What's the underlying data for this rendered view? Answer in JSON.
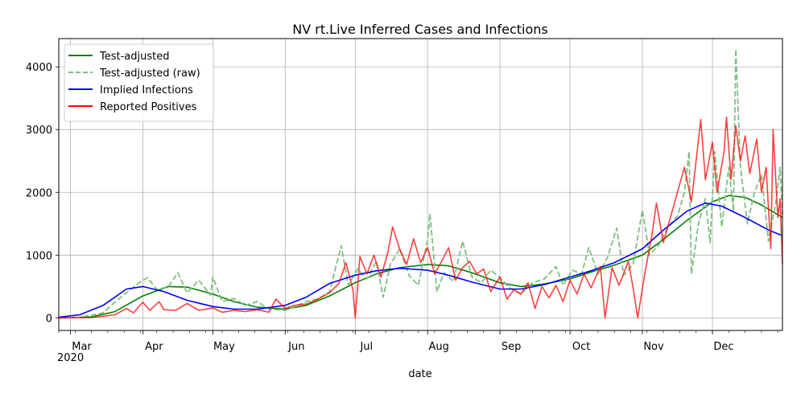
{
  "chart_data": {
    "type": "line",
    "title": "NV rt.Live Inferred Cases and Infections",
    "xlabel": "date",
    "ylabel": "",
    "year_label": "2020",
    "xlim": [
      "2020-02-25",
      "2020-12-31"
    ],
    "ylim": [
      -200,
      4450
    ],
    "yticks": [
      0,
      1000,
      2000,
      3000,
      4000
    ],
    "month_ticks": [
      {
        "label": "Mar",
        "date": "2020-03-01"
      },
      {
        "label": "Apr",
        "date": "2020-04-01"
      },
      {
        "label": "May",
        "date": "2020-05-01"
      },
      {
        "label": "Jun",
        "date": "2020-06-01"
      },
      {
        "label": "Jul",
        "date": "2020-07-01"
      },
      {
        "label": "Aug",
        "date": "2020-08-01"
      },
      {
        "label": "Sep",
        "date": "2020-09-01"
      },
      {
        "label": "Oct",
        "date": "2020-10-01"
      },
      {
        "label": "Nov",
        "date": "2020-11-01"
      },
      {
        "label": "Dec",
        "date": "2020-12-01"
      }
    ],
    "grid": true,
    "legend_position": "top-left",
    "series": [
      {
        "name": "Test-adjusted",
        "color": "#008000",
        "style": "solid",
        "points": [
          [
            "2020-02-25",
            0
          ],
          [
            "2020-03-10",
            15
          ],
          [
            "2020-03-20",
            100
          ],
          [
            "2020-04-01",
            350
          ],
          [
            "2020-04-12",
            500
          ],
          [
            "2020-04-20",
            490
          ],
          [
            "2020-05-01",
            380
          ],
          [
            "2020-05-10",
            260
          ],
          [
            "2020-05-20",
            170
          ],
          [
            "2020-06-01",
            140
          ],
          [
            "2020-06-10",
            200
          ],
          [
            "2020-06-20",
            350
          ],
          [
            "2020-07-01",
            560
          ],
          [
            "2020-07-10",
            700
          ],
          [
            "2020-07-20",
            800
          ],
          [
            "2020-08-01",
            850
          ],
          [
            "2020-08-10",
            830
          ],
          [
            "2020-08-20",
            720
          ],
          [
            "2020-09-01",
            560
          ],
          [
            "2020-09-10",
            500
          ],
          [
            "2020-09-20",
            540
          ],
          [
            "2020-10-01",
            620
          ],
          [
            "2020-10-10",
            730
          ],
          [
            "2020-10-20",
            840
          ],
          [
            "2020-11-01",
            1000
          ],
          [
            "2020-11-10",
            1250
          ],
          [
            "2020-11-20",
            1550
          ],
          [
            "2020-12-01",
            1850
          ],
          [
            "2020-12-08",
            1950
          ],
          [
            "2020-12-15",
            1920
          ],
          [
            "2020-12-22",
            1800
          ],
          [
            "2020-12-31",
            1600
          ]
        ]
      },
      {
        "name": "Test-adjusted (raw)",
        "color": "#7fbf7f",
        "style": "dashed",
        "points": [
          [
            "2020-02-25",
            0
          ],
          [
            "2020-03-05",
            10
          ],
          [
            "2020-03-15",
            80
          ],
          [
            "2020-03-20",
            250
          ],
          [
            "2020-03-25",
            400
          ],
          [
            "2020-03-30",
            550
          ],
          [
            "2020-04-03",
            640
          ],
          [
            "2020-04-07",
            450
          ],
          [
            "2020-04-12",
            500
          ],
          [
            "2020-04-16",
            720
          ],
          [
            "2020-04-20",
            400
          ],
          [
            "2020-04-25",
            600
          ],
          [
            "2020-04-30",
            360
          ],
          [
            "2020-05-01",
            650
          ],
          [
            "2020-05-05",
            260
          ],
          [
            "2020-05-10",
            310
          ],
          [
            "2020-05-15",
            200
          ],
          [
            "2020-05-20",
            260
          ],
          [
            "2020-05-25",
            140
          ],
          [
            "2020-06-01",
            120
          ],
          [
            "2020-06-05",
            180
          ],
          [
            "2020-06-10",
            260
          ],
          [
            "2020-06-15",
            300
          ],
          [
            "2020-06-20",
            420
          ],
          [
            "2020-06-25",
            1150
          ],
          [
            "2020-06-28",
            520
          ],
          [
            "2020-07-02",
            780
          ],
          [
            "2020-07-06",
            620
          ],
          [
            "2020-07-10",
            900
          ],
          [
            "2020-07-13",
            330
          ],
          [
            "2020-07-16",
            850
          ],
          [
            "2020-07-20",
            1100
          ],
          [
            "2020-07-24",
            680
          ],
          [
            "2020-07-28",
            520
          ],
          [
            "2020-08-01",
            1250
          ],
          [
            "2020-08-02",
            1660
          ],
          [
            "2020-08-05",
            420
          ],
          [
            "2020-08-08",
            720
          ],
          [
            "2020-08-12",
            580
          ],
          [
            "2020-08-16",
            1220
          ],
          [
            "2020-08-20",
            650
          ],
          [
            "2020-08-24",
            560
          ],
          [
            "2020-08-28",
            760
          ],
          [
            "2020-09-01",
            640
          ],
          [
            "2020-09-05",
            480
          ],
          [
            "2020-09-10",
            380
          ],
          [
            "2020-09-15",
            560
          ],
          [
            "2020-09-20",
            620
          ],
          [
            "2020-09-25",
            820
          ],
          [
            "2020-09-28",
            520
          ],
          [
            "2020-10-02",
            760
          ],
          [
            "2020-10-06",
            700
          ],
          [
            "2020-10-09",
            1120
          ],
          [
            "2020-10-13",
            700
          ],
          [
            "2020-10-17",
            960
          ],
          [
            "2020-10-21",
            1430
          ],
          [
            "2020-10-24",
            680
          ],
          [
            "2020-10-28",
            850
          ],
          [
            "2020-11-01",
            1720
          ],
          [
            "2020-11-04",
            1000
          ],
          [
            "2020-11-08",
            1160
          ],
          [
            "2020-11-12",
            1450
          ],
          [
            "2020-11-16",
            1620
          ],
          [
            "2020-11-19",
            2000
          ],
          [
            "2020-11-21",
            2650
          ],
          [
            "2020-11-22",
            700
          ],
          [
            "2020-11-25",
            1500
          ],
          [
            "2020-11-28",
            1900
          ],
          [
            "2020-11-30",
            1200
          ],
          [
            "2020-12-02",
            2650
          ],
          [
            "2020-12-05",
            1450
          ],
          [
            "2020-12-08",
            2400
          ],
          [
            "2020-12-10",
            1700
          ],
          [
            "2020-12-11",
            4280
          ],
          [
            "2020-12-13",
            2400
          ],
          [
            "2020-12-16",
            1500
          ],
          [
            "2020-12-19",
            2000
          ],
          [
            "2020-12-22",
            2280
          ],
          [
            "2020-12-25",
            1220
          ],
          [
            "2020-12-28",
            1800
          ],
          [
            "2020-12-30",
            2400
          ],
          [
            "2020-12-31",
            1650
          ]
        ]
      },
      {
        "name": "Implied Infections",
        "color": "#0000ff",
        "style": "solid",
        "points": [
          [
            "2020-02-25",
            10
          ],
          [
            "2020-03-05",
            50
          ],
          [
            "2020-03-15",
            200
          ],
          [
            "2020-03-25",
            460
          ],
          [
            "2020-04-01",
            500
          ],
          [
            "2020-04-10",
            420
          ],
          [
            "2020-04-20",
            280
          ],
          [
            "2020-05-01",
            180
          ],
          [
            "2020-05-10",
            140
          ],
          [
            "2020-05-20",
            140
          ],
          [
            "2020-06-01",
            200
          ],
          [
            "2020-06-10",
            330
          ],
          [
            "2020-06-20",
            550
          ],
          [
            "2020-07-01",
            680
          ],
          [
            "2020-07-10",
            750
          ],
          [
            "2020-07-20",
            790
          ],
          [
            "2020-08-01",
            760
          ],
          [
            "2020-08-10",
            680
          ],
          [
            "2020-08-20",
            570
          ],
          [
            "2020-09-01",
            460
          ],
          [
            "2020-09-10",
            460
          ],
          [
            "2020-09-20",
            530
          ],
          [
            "2020-10-01",
            650
          ],
          [
            "2020-10-10",
            750
          ],
          [
            "2020-10-20",
            880
          ],
          [
            "2020-11-01",
            1100
          ],
          [
            "2020-11-10",
            1400
          ],
          [
            "2020-11-20",
            1700
          ],
          [
            "2020-11-28",
            1830
          ],
          [
            "2020-12-05",
            1780
          ],
          [
            "2020-12-15",
            1600
          ],
          [
            "2020-12-25",
            1400
          ],
          [
            "2020-12-31",
            1310
          ]
        ]
      },
      {
        "name": "Reported Positives",
        "color": "#ff0000",
        "style": "solid",
        "points": [
          [
            "2020-02-25",
            0
          ],
          [
            "2020-03-10",
            5
          ],
          [
            "2020-03-20",
            50
          ],
          [
            "2020-03-25",
            150
          ],
          [
            "2020-03-28",
            80
          ],
          [
            "2020-04-01",
            250
          ],
          [
            "2020-04-04",
            120
          ],
          [
            "2020-04-08",
            260
          ],
          [
            "2020-04-10",
            130
          ],
          [
            "2020-04-15",
            120
          ],
          [
            "2020-04-20",
            230
          ],
          [
            "2020-04-25",
            120
          ],
          [
            "2020-05-01",
            160
          ],
          [
            "2020-05-05",
            90
          ],
          [
            "2020-05-10",
            120
          ],
          [
            "2020-05-15",
            100
          ],
          [
            "2020-05-20",
            130
          ],
          [
            "2020-05-25",
            90
          ],
          [
            "2020-05-28",
            300
          ],
          [
            "2020-06-01",
            150
          ],
          [
            "2020-06-05",
            200
          ],
          [
            "2020-06-10",
            220
          ],
          [
            "2020-06-15",
            300
          ],
          [
            "2020-06-20",
            400
          ],
          [
            "2020-06-24",
            550
          ],
          [
            "2020-06-27",
            880
          ],
          [
            "2020-06-30",
            450
          ],
          [
            "2020-07-01",
            0
          ],
          [
            "2020-07-03",
            980
          ],
          [
            "2020-07-06",
            700
          ],
          [
            "2020-07-09",
            1000
          ],
          [
            "2020-07-12",
            650
          ],
          [
            "2020-07-15",
            1050
          ],
          [
            "2020-07-17",
            1450
          ],
          [
            "2020-07-20",
            1100
          ],
          [
            "2020-07-23",
            850
          ],
          [
            "2020-07-26",
            1260
          ],
          [
            "2020-07-29",
            880
          ],
          [
            "2020-08-01",
            1120
          ],
          [
            "2020-08-04",
            700
          ],
          [
            "2020-08-07",
            900
          ],
          [
            "2020-08-10",
            1120
          ],
          [
            "2020-08-13",
            600
          ],
          [
            "2020-08-16",
            800
          ],
          [
            "2020-08-19",
            900
          ],
          [
            "2020-08-22",
            700
          ],
          [
            "2020-08-25",
            780
          ],
          [
            "2020-08-28",
            420
          ],
          [
            "2020-09-01",
            650
          ],
          [
            "2020-09-04",
            300
          ],
          [
            "2020-09-07",
            450
          ],
          [
            "2020-09-10",
            380
          ],
          [
            "2020-09-13",
            560
          ],
          [
            "2020-09-16",
            150
          ],
          [
            "2020-09-19",
            500
          ],
          [
            "2020-09-22",
            320
          ],
          [
            "2020-09-25",
            520
          ],
          [
            "2020-09-28",
            260
          ],
          [
            "2020-10-01",
            600
          ],
          [
            "2020-10-04",
            380
          ],
          [
            "2020-10-07",
            700
          ],
          [
            "2020-10-10",
            480
          ],
          [
            "2020-10-14",
            820
          ],
          [
            "2020-10-16",
            0
          ],
          [
            "2020-10-19",
            800
          ],
          [
            "2020-10-22",
            520
          ],
          [
            "2020-10-26",
            900
          ],
          [
            "2020-10-28",
            480
          ],
          [
            "2020-10-30",
            0
          ],
          [
            "2020-11-02",
            700
          ],
          [
            "2020-11-05",
            1300
          ],
          [
            "2020-11-07",
            1830
          ],
          [
            "2020-11-10",
            1200
          ],
          [
            "2020-11-13",
            1600
          ],
          [
            "2020-11-16",
            2000
          ],
          [
            "2020-11-19",
            2400
          ],
          [
            "2020-11-22",
            1850
          ],
          [
            "2020-11-24",
            2500
          ],
          [
            "2020-11-26",
            3160
          ],
          [
            "2020-11-28",
            2200
          ],
          [
            "2020-12-01",
            2800
          ],
          [
            "2020-12-03",
            2000
          ],
          [
            "2020-12-06",
            2650
          ],
          [
            "2020-12-07",
            3200
          ],
          [
            "2020-12-09",
            2200
          ],
          [
            "2020-12-11",
            3060
          ],
          [
            "2020-12-13",
            2500
          ],
          [
            "2020-12-15",
            2900
          ],
          [
            "2020-12-17",
            2300
          ],
          [
            "2020-12-20",
            2850
          ],
          [
            "2020-12-22",
            2000
          ],
          [
            "2020-12-24",
            2400
          ],
          [
            "2020-12-26",
            1100
          ],
          [
            "2020-12-27",
            3000
          ],
          [
            "2020-12-29",
            1600
          ],
          [
            "2020-12-30",
            1900
          ],
          [
            "2020-12-31",
            850
          ]
        ]
      }
    ]
  }
}
